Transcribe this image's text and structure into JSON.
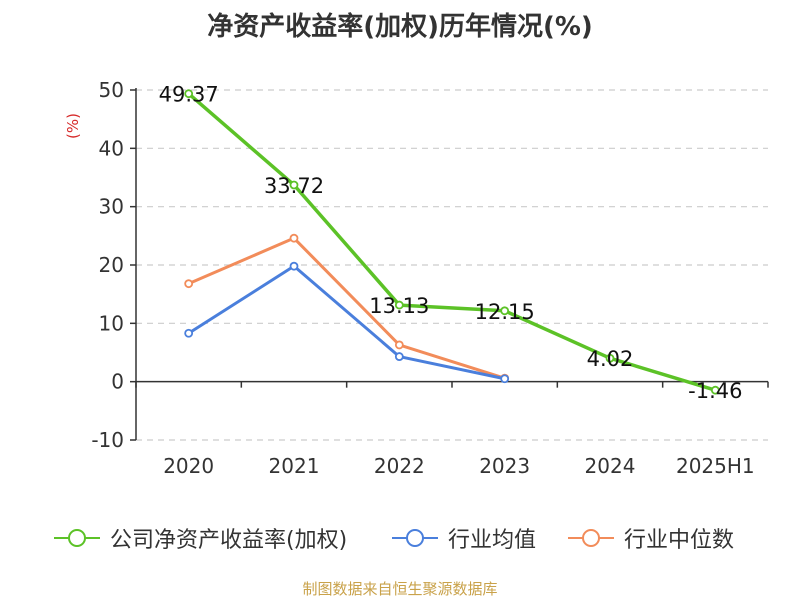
{
  "title": "净资产收益率(加权)历年情况(%)",
  "source": "制图数据来自恒生聚源数据库",
  "colors": {
    "company": "#5cc227",
    "avg": "#4a7fdc",
    "median": "#f28c5a",
    "grid": "#cccccc",
    "axis": "#333333",
    "unit": "#d62a2a"
  },
  "chart_data": {
    "type": "line",
    "title": "净资产收益率(加权)历年情况(%)",
    "ylabel": "(%)",
    "xlabel": "",
    "categories": [
      "2020",
      "2021",
      "2022",
      "2023",
      "2024",
      "2025H1"
    ],
    "ylim": [
      -10,
      50
    ],
    "yticks": [
      "-10",
      "0",
      "10",
      "20",
      "30",
      "40",
      "50"
    ],
    "grid": true,
    "legend_position": "bottom",
    "series": [
      {
        "name": "公司净资产收益率(加权)",
        "values": [
          49.37,
          33.72,
          13.13,
          12.15,
          4.02,
          -1.46
        ],
        "labels": [
          "49.37",
          "33.72",
          "13.13",
          "12.15",
          "4.02",
          "-1.46"
        ]
      },
      {
        "name": "行业均值",
        "values": [
          8.3,
          19.8,
          4.3,
          0.5,
          null,
          null
        ]
      },
      {
        "name": "行业中位数",
        "values": [
          16.8,
          24.6,
          6.3,
          0.6,
          null,
          null
        ]
      }
    ]
  }
}
